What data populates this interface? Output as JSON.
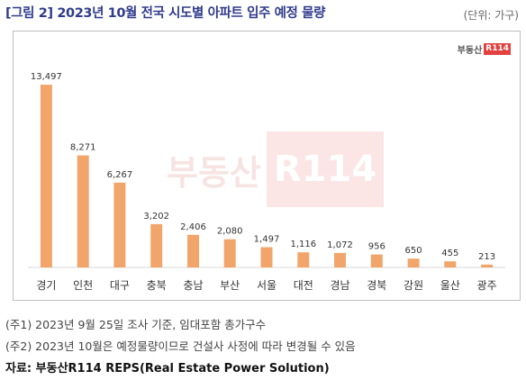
{
  "header": {
    "title": "[그림 2] 2023년 10월 전국 시도별 아파트 입주 예정 물량",
    "unit": "(단위: 가구)"
  },
  "logo": {
    "text": "부동산",
    "badge": "R114"
  },
  "watermark": {
    "text": "부동산",
    "badge": "R114"
  },
  "chart_data": {
    "type": "bar",
    "categories": [
      "경기",
      "인천",
      "대구",
      "충북",
      "충남",
      "부산",
      "서울",
      "대전",
      "경남",
      "경북",
      "강원",
      "울산",
      "광주"
    ],
    "values": [
      13497,
      8271,
      6267,
      3202,
      2406,
      2080,
      1497,
      1116,
      1072,
      956,
      650,
      455,
      213
    ],
    "value_labels": [
      "13,497",
      "8,271",
      "6,267",
      "3,202",
      "2,406",
      "2,080",
      "1,497",
      "1,116",
      "1,072",
      "956",
      "650",
      "455",
      "213"
    ],
    "ylim": [
      0,
      14500
    ],
    "bar_color": "#f2a56a",
    "grid": false,
    "legend": "none"
  },
  "notes": [
    "(주1) 2023년 9월 25일 조사 기준, 임대포함 총가구수",
    "(주2) 2023년 10월은 예정물량이므로 건설사 사정에 따라 변경될 수 있음"
  ],
  "source": "자료: 부동산R114 REPS(Real Estate Power Solution)"
}
